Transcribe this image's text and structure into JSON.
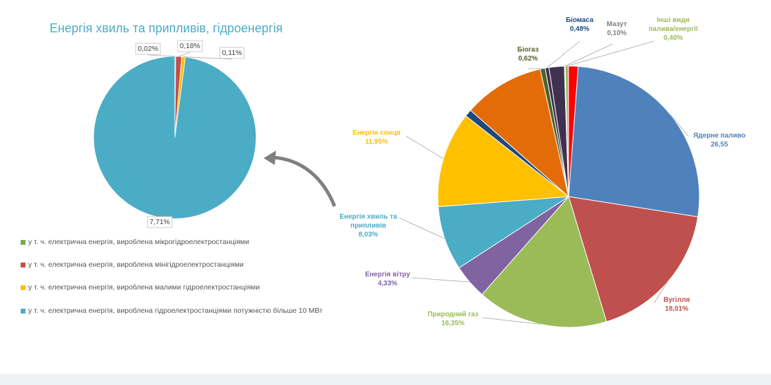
{
  "chart_data": [
    {
      "type": "pie",
      "title": "Енергія хвиль та припливів, гідроенергія",
      "slices": [
        {
          "label": "у т. ч. електрична енергія, вироблена мікрогідроелектростанціями",
          "value_label": "0,02%",
          "value": 0.02,
          "color": "#70ad47"
        },
        {
          "label": "у т. ч. електрична енергія, вироблена мінігідроелектростанціями",
          "value_label": "0,18%",
          "value": 0.18,
          "color": "#c0504d"
        },
        {
          "label": "у т. ч. електрична енергія, вироблена малими гідроелектростанціями",
          "value_label": "0,11%",
          "value": 0.11,
          "color": "#ffc000"
        },
        {
          "label": "у т. ч. електрична енергія, вироблена гідроелектростанціями потужністю більше 10 МВт",
          "value_label": "7,71%",
          "value": 7.71,
          "color": "#4bacc6"
        }
      ]
    },
    {
      "type": "pie",
      "slices": [
        {
          "label": "Ядерне паливо",
          "value_label": "26,55",
          "value": 26.55,
          "color": "#4f81bd"
        },
        {
          "label": "Вугілля",
          "value_label": "18,01%",
          "value": 18.01,
          "color": "#c0504d"
        },
        {
          "label": "Природний газ",
          "value_label": "16,35%",
          "value": 16.35,
          "color": "#9bbb59"
        },
        {
          "label": "Енергія вітру",
          "value_label": "4,33%",
          "value": 4.33,
          "color": "#8064a2"
        },
        {
          "label": "Енергія хвиль та припливів",
          "value_label": "8,03%",
          "value": 8.03,
          "color": "#4bacc6"
        },
        {
          "label": "Енергія сонця",
          "value_label": "11,95%",
          "value": 11.95,
          "color": "#ffc000"
        },
        {
          "label": "",
          "value_label": "",
          "value": 0.9,
          "color": "#1f497d"
        },
        {
          "label": "",
          "value_label": "",
          "value": 10.1,
          "color": "#e36c09"
        },
        {
          "label": "Біогаз",
          "value_label": "0,62%",
          "value": 0.62,
          "color": "#4f6228"
        },
        {
          "label": "Біомаса",
          "value_label": "0,48%",
          "value": 0.48,
          "color": "#403151"
        },
        {
          "label": "",
          "value_label": "",
          "value": 1.9,
          "color": "#403151"
        },
        {
          "label": "Мазут",
          "value_label": "0,10%",
          "value": 0.1,
          "color": "#7f7f7f"
        },
        {
          "label": "Інші види палива/енергії",
          "value_label": "0,40%",
          "value": 0.4,
          "color": "#9bbb59"
        },
        {
          "label": "",
          "value_label": "",
          "value": 1.2,
          "color": "#ff0000"
        }
      ]
    }
  ]
}
